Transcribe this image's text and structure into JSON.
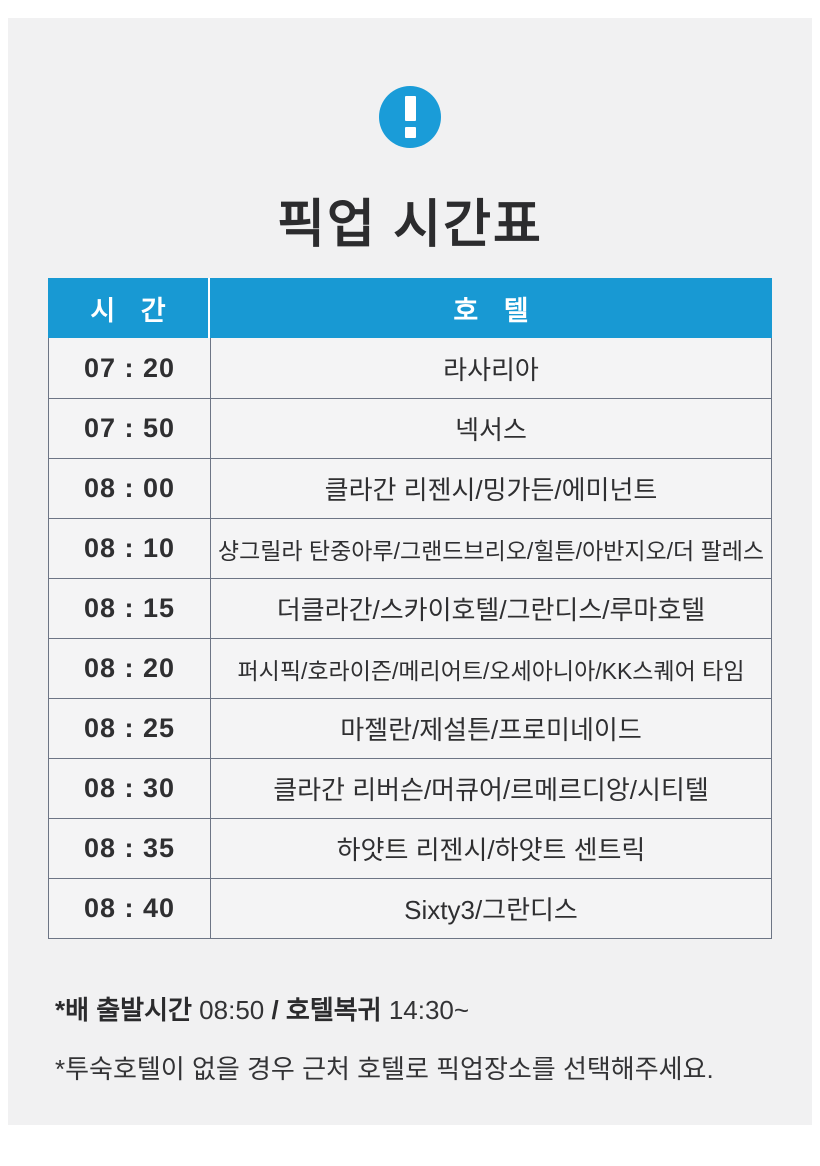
{
  "page": {
    "background_color": "#ffffff",
    "card_color": "#f1f1f2",
    "accent_blue": "#1899d3",
    "border_slate": "#6d7585"
  },
  "header": {
    "icon": "exclamation-icon",
    "title": "픽업 시간표"
  },
  "table": {
    "columns": [
      {
        "key": "time",
        "label": "시 간"
      },
      {
        "key": "hotel",
        "label": "호 텔"
      }
    ],
    "rows": [
      {
        "time": "07 : 20",
        "hotel": "라사리아"
      },
      {
        "time": "07 : 50",
        "hotel": "넥서스"
      },
      {
        "time": "08 : 00",
        "hotel": "클라간 리젠시/밍가든/에미넌트"
      },
      {
        "time": "08 : 10",
        "hotel": "샹그릴라 탄중아루/그랜드브리오/힐튼/아반지오/더 팔레스"
      },
      {
        "time": "08 : 15",
        "hotel": "더클라간/스카이호텔/그란디스/루마호텔"
      },
      {
        "time": "08 : 20",
        "hotel": "퍼시픽/호라이즌/메리어트/오세아니아/KK스퀘어 타임"
      },
      {
        "time": "08 : 25",
        "hotel": "마젤란/제설튼/프로미네이드"
      },
      {
        "time": "08 : 30",
        "hotel": "클라간 리버슨/머큐어/르메르디앙/시티텔"
      },
      {
        "time": "08 : 35",
        "hotel": "하얏트 리젠시/하얏트 센트릭"
      },
      {
        "time": "08 : 40",
        "hotel": "Sixty3/그란디스"
      }
    ]
  },
  "notes": {
    "line1_bold1": "*배 출발시간",
    "line1_normal1": " 08:50 ",
    "line1_bold2": "/ 호텔복귀",
    "line1_normal2": " 14:30~",
    "line2": "*투숙호텔이 없을 경우 근처 호텔로 픽업장소를 선택해주세요."
  }
}
